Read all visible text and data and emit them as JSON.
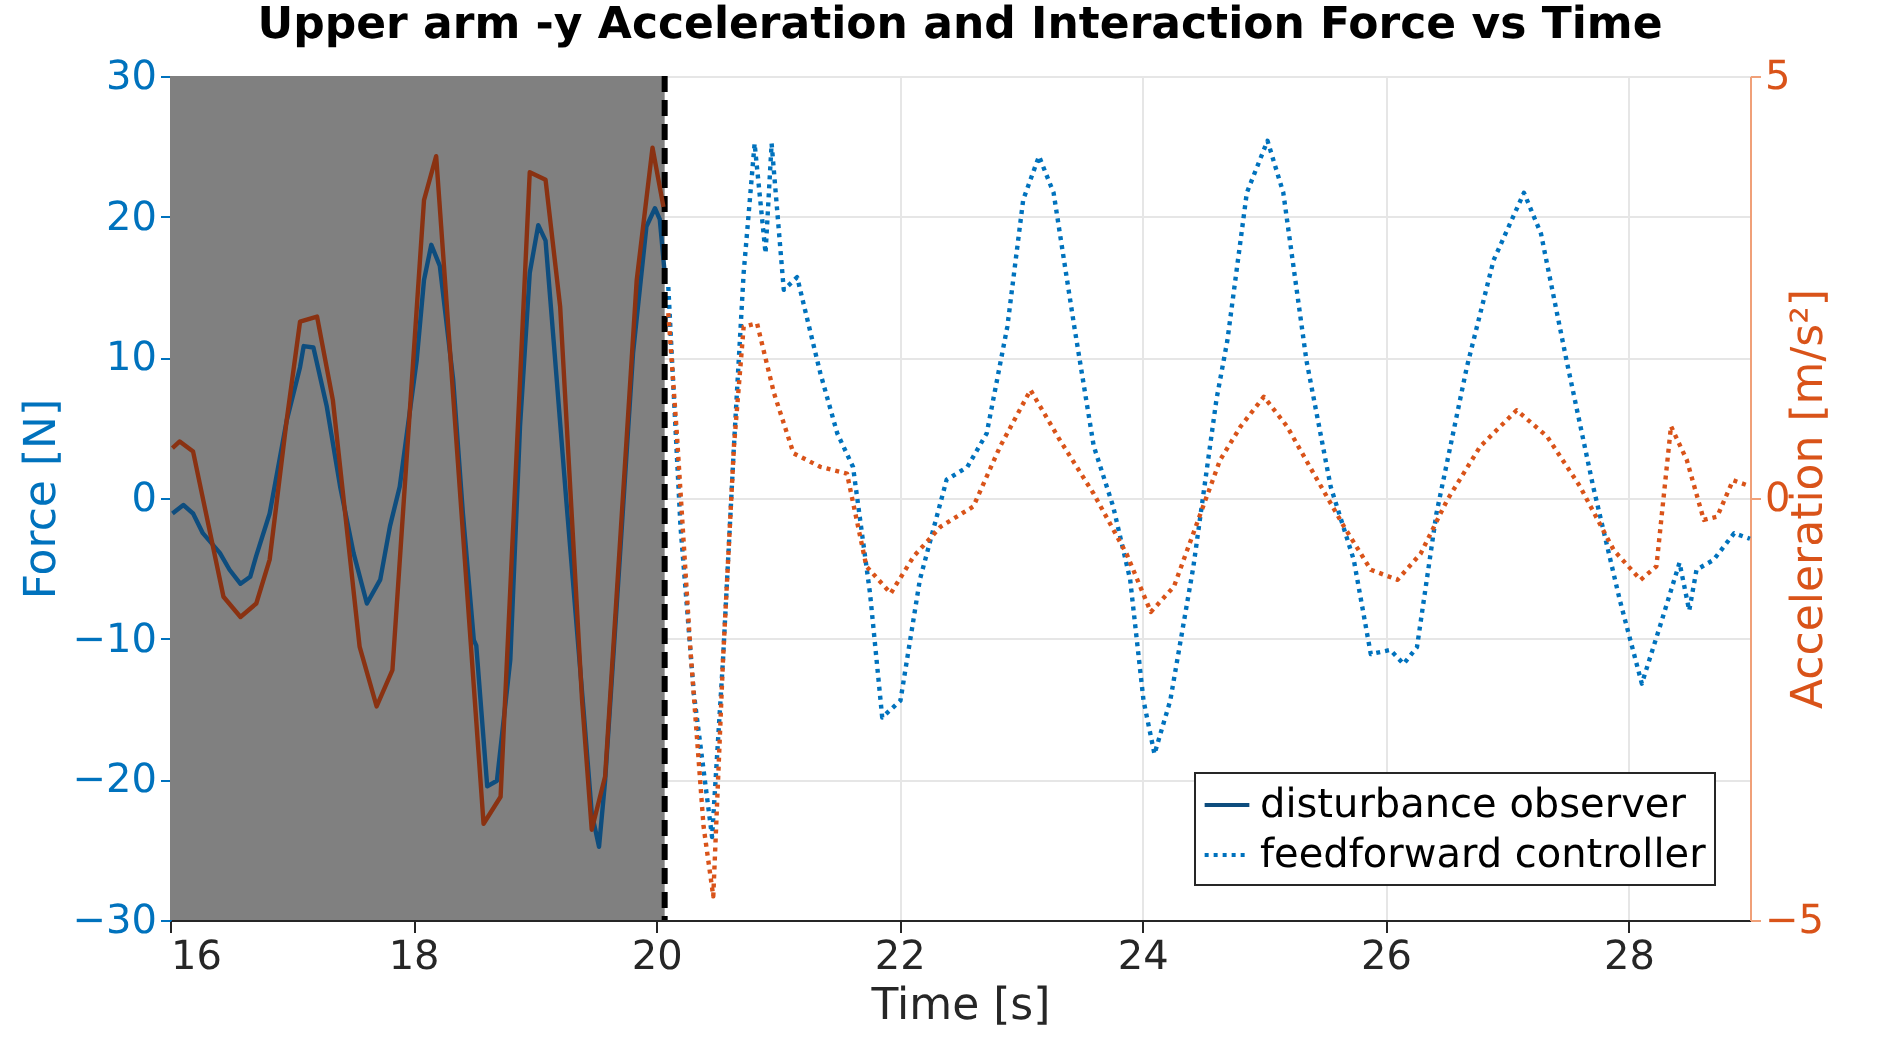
{
  "chart_data": {
    "type": "line",
    "title": "Upper arm -y Acceleration and Interaction Force vs Time",
    "xlabel": "Time [s]",
    "ylabel": "Force [N]",
    "y2label": "Acceleration [m/s²]",
    "xlim": [
      16,
      29
    ],
    "xticks": [
      16,
      18,
      20,
      22,
      24,
      26,
      28
    ],
    "ylim": [
      -30,
      30
    ],
    "yticks": [
      -30,
      -20,
      -10,
      0,
      10,
      20,
      30
    ],
    "y2lim": [
      -5,
      5
    ],
    "y2ticks": [
      -5,
      0,
      5
    ],
    "grid": true,
    "legend": "bottom right",
    "bands": [
      {
        "axis": "x",
        "from": 16,
        "to": 20.07,
        "color": "#808080"
      }
    ],
    "ref_lines": [
      {
        "axis": "x",
        "value": 20.07,
        "color": "#000000",
        "line_style": "dashed"
      }
    ],
    "series": [
      {
        "name": "disturbance observer",
        "color": "#0e4d7e",
        "line_style": "solid",
        "x": [
          16.02,
          16.11,
          16.19,
          16.27,
          16.41,
          16.49,
          16.58,
          16.66,
          16.71,
          16.82,
          16.96,
          17.07,
          17.1,
          17.18,
          17.29,
          17.4,
          17.51,
          17.62,
          17.73,
          17.81,
          17.89,
          18.03,
          18.09,
          18.15,
          18.22,
          18.33,
          18.41,
          18.5,
          18.52,
          18.61,
          18.69,
          18.8,
          18.88,
          18.96,
          19.03,
          19.09,
          19.16,
          19.26,
          19.4,
          19.47,
          19.53,
          19.58,
          19.7,
          19.81,
          19.92,
          19.99,
          20.03,
          20.07
        ],
        "values": [
          -1.1,
          -0.5,
          -1.1,
          -2.5,
          -3.9,
          -5.1,
          -6.1,
          -5.6,
          -4.1,
          -1.1,
          5.5,
          9.3,
          10.8,
          10.7,
          6.5,
          0.8,
          -3.9,
          -7.5,
          -5.8,
          -2.0,
          0.8,
          9.8,
          15.5,
          18.0,
          16.5,
          8.4,
          -1.1,
          -10.1,
          -10.5,
          -20.5,
          -20.1,
          -11.5,
          5.1,
          16.0,
          19.4,
          18.3,
          10.8,
          -0.1,
          -14.8,
          -22.4,
          -24.8,
          -20.1,
          -4.4,
          10.3,
          19.3,
          20.6,
          19.8,
          16.0
        ]
      },
      {
        "color": "#8a3212",
        "line_style": "solid",
        "axis": "y2",
        "x": [
          16.02,
          16.08,
          16.19,
          16.44,
          16.58,
          16.71,
          16.82,
          16.96,
          17.07,
          17.21,
          17.34,
          17.56,
          17.7,
          17.83,
          18.09,
          18.19,
          18.58,
          18.72,
          18.96,
          19.09,
          19.21,
          19.39,
          19.47,
          19.58,
          19.84,
          19.97,
          20.06
        ],
        "values": [
          0.59,
          0.67,
          0.55,
          -1.17,
          -1.41,
          -1.25,
          -0.73,
          0.92,
          2.09,
          2.15,
          1.16,
          -1.76,
          -2.47,
          -2.04,
          3.53,
          4.05,
          -3.86,
          -3.54,
          3.86,
          3.77,
          2.27,
          -2.39,
          -3.93,
          -3.3,
          2.58,
          4.15,
          3.45
        ]
      },
      {
        "name": "feedforward controller",
        "color": "#0072bd",
        "line_style": "dotted",
        "x": [
          20.1,
          20.2,
          20.31,
          20.46,
          20.55,
          20.64,
          20.72,
          20.81,
          20.9,
          20.95,
          21.05,
          21.16,
          21.35,
          21.49,
          21.62,
          21.76,
          21.86,
          22.01,
          22.17,
          22.39,
          22.56,
          22.72,
          22.89,
          23.02,
          23.15,
          23.27,
          23.44,
          23.6,
          23.76,
          23.9,
          24.01,
          24.1,
          24.23,
          24.42,
          24.61,
          24.7,
          24.86,
          25.03,
          25.16,
          25.35,
          25.55,
          25.74,
          25.88,
          26.04,
          26.15,
          26.26,
          26.42,
          26.67,
          26.89,
          27.14,
          27.28,
          27.49,
          27.71,
          27.93,
          28.11,
          28.26,
          28.42,
          28.5,
          28.56,
          28.7,
          28.87,
          29.0
        ],
        "values": [
          15.0,
          -2.0,
          -13.9,
          -24.1,
          -11.5,
          3.7,
          16.0,
          25.2,
          17.4,
          25.2,
          14.8,
          15.7,
          8.9,
          4.6,
          2.2,
          -6.8,
          -15.6,
          -14.4,
          -5.8,
          1.3,
          2.2,
          4.6,
          12.2,
          21.2,
          24.3,
          21.7,
          12.2,
          3.7,
          -0.6,
          -5.8,
          -14.4,
          -18.2,
          -14.4,
          -4.9,
          7.0,
          11.2,
          21.7,
          25.4,
          21.7,
          9.8,
          0.8,
          -4.4,
          -11.1,
          -10.8,
          -11.8,
          -10.6,
          -1.1,
          9.3,
          16.9,
          21.7,
          18.8,
          9.8,
          0.8,
          -7.3,
          -13.2,
          -9.1,
          -4.6,
          -8.0,
          -5.1,
          -4.4,
          -2.5,
          -2.9
        ]
      },
      {
        "color": "#d95319",
        "line_style": "dotted",
        "axis": "y2",
        "x": [
          20.1,
          20.17,
          20.28,
          20.39,
          20.47,
          20.55,
          20.64,
          20.72,
          20.83,
          20.97,
          21.13,
          21.35,
          21.57,
          21.73,
          21.93,
          22.12,
          22.34,
          22.61,
          22.83,
          23.08,
          23.32,
          23.6,
          23.87,
          24.07,
          24.26,
          24.48,
          24.64,
          24.81,
          25.0,
          25.19,
          25.41,
          25.66,
          25.88,
          26.1,
          26.29,
          26.51,
          26.78,
          27.08,
          27.33,
          27.6,
          27.88,
          28.1,
          28.23,
          28.35,
          28.48,
          28.62,
          28.73,
          28.86,
          29.0
        ],
        "values": [
          2.19,
          0.77,
          -1.76,
          -3.89,
          -4.72,
          -1.92,
          0.61,
          2.03,
          2.07,
          1.24,
          0.53,
          0.37,
          0.29,
          -0.81,
          -1.13,
          -0.69,
          -0.34,
          -0.1,
          0.61,
          1.28,
          0.69,
          0.05,
          -0.66,
          -1.35,
          -1.05,
          -0.18,
          0.45,
          0.85,
          1.2,
          0.85,
          0.29,
          -0.34,
          -0.85,
          -0.97,
          -0.66,
          -0.02,
          0.61,
          1.04,
          0.73,
          0.14,
          -0.62,
          -0.97,
          -0.81,
          0.85,
          0.45,
          -0.26,
          -0.22,
          0.21,
          0.14
        ]
      }
    ]
  }
}
